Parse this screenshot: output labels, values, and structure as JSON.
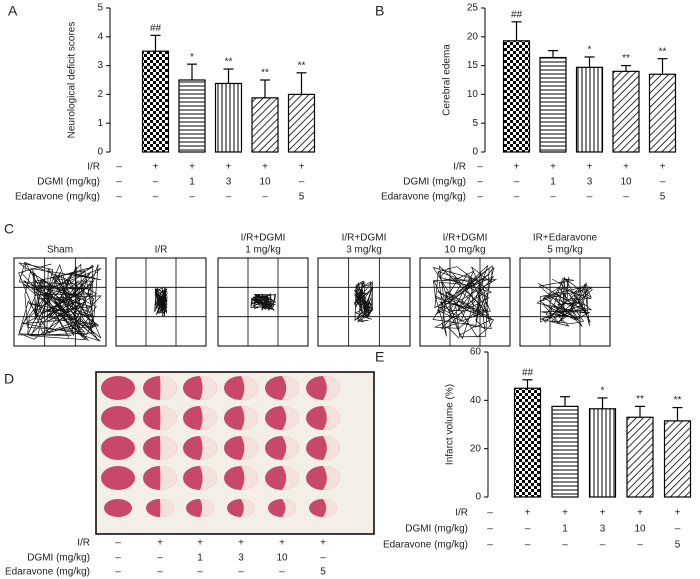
{
  "chart_data": [
    {
      "type": "bar",
      "label": "A",
      "ylabel": "Neurological deficit scores",
      "categories": [
        null,
        null,
        null,
        null,
        null,
        null
      ],
      "values": [
        0,
        3.5,
        2.5,
        2.38,
        1.88,
        2.0
      ],
      "errors": [
        0,
        0.55,
        0.55,
        0.5,
        0.62,
        0.75
      ],
      "sig": [
        null,
        "##",
        "*",
        "**",
        "**",
        "**"
      ],
      "patterns": [
        "none",
        "checker",
        "horizontal",
        "vertical",
        "diagonal",
        "diagonal"
      ],
      "ylim": [
        0,
        5
      ],
      "yticks": [
        0,
        1,
        2,
        3,
        4,
        5
      ],
      "table": [
        {
          "label": "I/R",
          "cells": [
            "–",
            "+",
            "+",
            "+",
            "+",
            "+"
          ]
        },
        {
          "label": "DGMI (mg/kg)",
          "cells": [
            "–",
            "–",
            "1",
            "3",
            "10",
            "–"
          ]
        },
        {
          "label": "Edaravone (mg/kg)",
          "cells": [
            "–",
            "–",
            "–",
            "–",
            "–",
            "5"
          ]
        }
      ]
    },
    {
      "type": "bar",
      "label": "B",
      "ylabel": "Cerebral edema",
      "categories": [
        null,
        null,
        null,
        null,
        null,
        null
      ],
      "values": [
        0,
        19.3,
        16.4,
        14.7,
        14.0,
        13.5
      ],
      "errors": [
        0,
        3.3,
        1.2,
        1.8,
        1.0,
        2.7
      ],
      "sig": [
        null,
        "##",
        null,
        "*",
        "**",
        "**"
      ],
      "patterns": [
        "none",
        "checker",
        "horizontal",
        "vertical",
        "diagonal",
        "diagonal"
      ],
      "ylim": [
        0,
        25
      ],
      "yticks": [
        0,
        5,
        10,
        15,
        20,
        25
      ],
      "table": [
        {
          "label": "I/R",
          "cells": [
            "–",
            "+",
            "+",
            "+",
            "+",
            "+"
          ]
        },
        {
          "label": "DGMI (mg/kg)",
          "cells": [
            "–",
            "–",
            "1",
            "3",
            "10",
            "–"
          ]
        },
        {
          "label": "Edaravone (mg/kg)",
          "cells": [
            "–",
            "–",
            "–",
            "–",
            "–",
            "5"
          ]
        }
      ]
    },
    {
      "type": "bar",
      "label": "E",
      "ylabel": "Infarct volume (%)",
      "categories": [
        null,
        null,
        null,
        null,
        null,
        null
      ],
      "values": [
        0,
        45,
        37.5,
        36.5,
        33,
        31.5
      ],
      "errors": [
        0,
        3.5,
        4,
        4.5,
        4.5,
        5.5
      ],
      "sig": [
        null,
        "##",
        null,
        "*",
        "**",
        "**"
      ],
      "patterns": [
        "none",
        "checker",
        "horizontal",
        "vertical",
        "diagonal",
        "diagonal"
      ],
      "ylim": [
        0,
        60
      ],
      "yticks": [
        0,
        20,
        40,
        60
      ],
      "table": [
        {
          "label": "I/R",
          "cells": [
            "–",
            "+",
            "+",
            "+",
            "+",
            "+"
          ]
        },
        {
          "label": "DGMI (mg/kg)",
          "cells": [
            "–",
            "–",
            "1",
            "3",
            "10",
            "–"
          ]
        },
        {
          "label": "Edaravone (mg/kg)",
          "cells": [
            "–",
            "–",
            "–",
            "–",
            "–",
            "5"
          ]
        }
      ]
    }
  ],
  "panel_c": {
    "label": "C",
    "titles": [
      [
        "Sham"
      ],
      [
        "I/R"
      ],
      [
        "I/R+DGMI",
        "1 mg/kg"
      ],
      [
        "I/R+DGMI",
        "3 mg/kg"
      ],
      [
        "I/R+DGMI",
        "10 mg/kg"
      ],
      [
        "IR+Edaravone",
        "5 mg/kg"
      ]
    ]
  },
  "panel_d": {
    "label": "D",
    "table": [
      {
        "label": "I/R",
        "cells": [
          "–",
          "+",
          "+",
          "+",
          "+",
          "+"
        ]
      },
      {
        "label": "DGMI (mg/kg)",
        "cells": [
          "–",
          "–",
          "1",
          "3",
          "10",
          "–"
        ]
      },
      {
        "label": "Edaravone (mg/kg)",
        "cells": [
          "–",
          "–",
          "–",
          "–",
          "–",
          "5"
        ]
      }
    ]
  }
}
